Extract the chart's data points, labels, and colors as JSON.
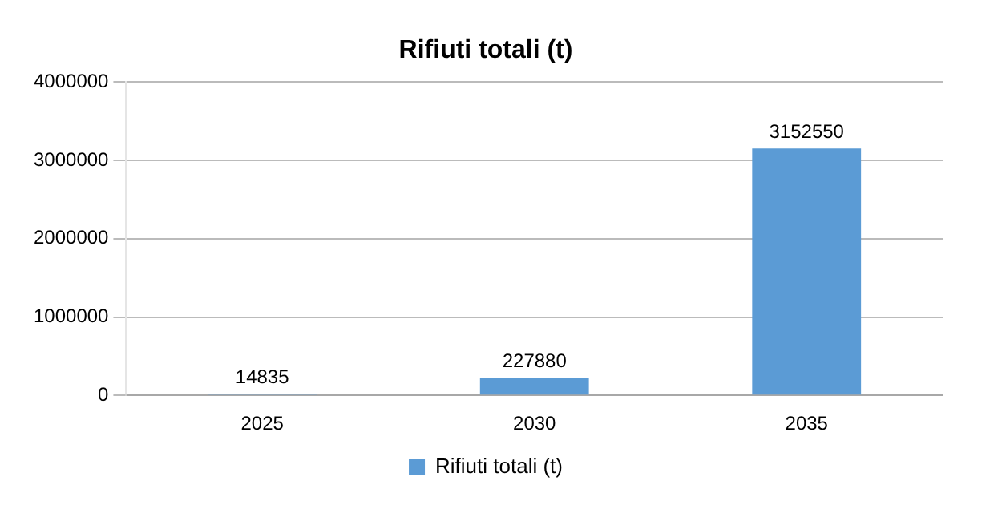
{
  "chart_data": {
    "type": "bar",
    "title": "Rifiuti totali (t)",
    "categories": [
      "2025",
      "2030",
      "2035"
    ],
    "series": [
      {
        "name": "Rifiuti totali (t)",
        "color": "#5b9bd5",
        "values": [
          14835,
          227880,
          3152550
        ]
      }
    ],
    "ylim": [
      0,
      4000000
    ],
    "yticks": [
      0,
      1000000,
      2000000,
      3000000,
      4000000
    ],
    "grid": "y",
    "legend": "bottom",
    "data_labels": true
  }
}
